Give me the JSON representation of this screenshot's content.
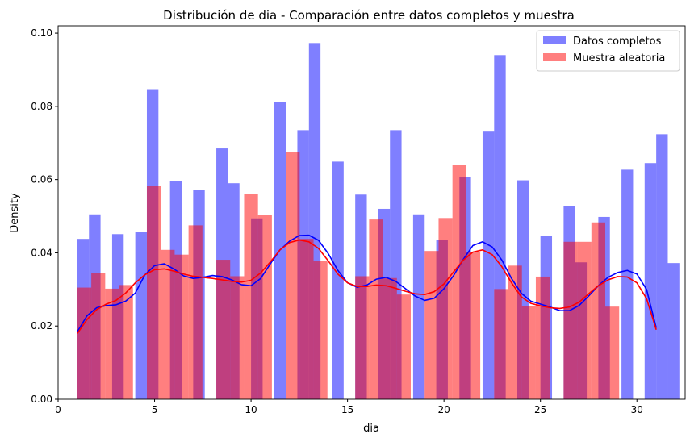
{
  "chart_data": {
    "type": "bar",
    "title": "Distribución de dia - Comparación entre datos completos y muestra",
    "xlabel": "dia",
    "ylabel": "Density",
    "xlim": [
      0.0,
      32.5
    ],
    "ylim": [
      0,
      0.102
    ],
    "xticks": [
      0,
      5,
      10,
      15,
      20,
      25,
      30
    ],
    "yticks": [
      0.0,
      0.02,
      0.04,
      0.06,
      0.08,
      0.1
    ],
    "ytick_labels": [
      "0.00",
      "0.02",
      "0.04",
      "0.06",
      "0.08",
      "0.10"
    ],
    "legend_position": "top-right",
    "series": [
      {
        "name": "Datos completos",
        "color": "#0000ff",
        "opacity": 0.5,
        "bin_width": 0.6,
        "bins": [
          [
            1.0,
            0.0438
          ],
          [
            1.6,
            0.0505
          ],
          [
            2.8,
            0.0451
          ],
          [
            4.0,
            0.0456
          ],
          [
            4.6,
            0.0847
          ],
          [
            5.8,
            0.0595
          ],
          [
            7.0,
            0.0571
          ],
          [
            8.2,
            0.0685
          ],
          [
            8.8,
            0.059
          ],
          [
            10.0,
            0.0494
          ],
          [
            11.2,
            0.0812
          ],
          [
            12.4,
            0.0735
          ],
          [
            13.0,
            0.0973
          ],
          [
            14.2,
            0.0649
          ],
          [
            15.4,
            0.0559
          ],
          [
            16.6,
            0.052
          ],
          [
            17.2,
            0.0735
          ],
          [
            18.4,
            0.0505
          ],
          [
            19.6,
            0.0436
          ],
          [
            20.8,
            0.0607
          ],
          [
            22.0,
            0.0731
          ],
          [
            22.6,
            0.094
          ],
          [
            23.8,
            0.0598
          ],
          [
            25.0,
            0.0447
          ],
          [
            26.2,
            0.0528
          ],
          [
            26.8,
            0.0374
          ],
          [
            28.0,
            0.0498
          ],
          [
            29.2,
            0.0627
          ],
          [
            30.4,
            0.0645
          ],
          [
            31.0,
            0.0724
          ],
          [
            31.6,
            0.0372
          ]
        ],
        "kde": [
          [
            1.0,
            0.0185
          ],
          [
            1.5,
            0.0228
          ],
          [
            2.0,
            0.025
          ],
          [
            2.5,
            0.0256
          ],
          [
            3.0,
            0.0258
          ],
          [
            3.5,
            0.0268
          ],
          [
            4.0,
            0.029
          ],
          [
            4.5,
            0.034
          ],
          [
            5.0,
            0.0365
          ],
          [
            5.5,
            0.037
          ],
          [
            6.0,
            0.0356
          ],
          [
            6.5,
            0.0337
          ],
          [
            7.0,
            0.033
          ],
          [
            7.5,
            0.0333
          ],
          [
            8.0,
            0.0338
          ],
          [
            8.5,
            0.0335
          ],
          [
            9.0,
            0.0326
          ],
          [
            9.5,
            0.0313
          ],
          [
            10.0,
            0.031
          ],
          [
            10.5,
            0.033
          ],
          [
            11.0,
            0.037
          ],
          [
            11.5,
            0.0408
          ],
          [
            12.0,
            0.0432
          ],
          [
            12.5,
            0.0447
          ],
          [
            13.0,
            0.0448
          ],
          [
            13.5,
            0.0434
          ],
          [
            14.0,
            0.0398
          ],
          [
            14.5,
            0.0352
          ],
          [
            15.0,
            0.0318
          ],
          [
            15.5,
            0.0306
          ],
          [
            16.0,
            0.0312
          ],
          [
            16.5,
            0.0328
          ],
          [
            17.0,
            0.0333
          ],
          [
            17.5,
            0.0322
          ],
          [
            18.0,
            0.0302
          ],
          [
            18.5,
            0.0282
          ],
          [
            19.0,
            0.027
          ],
          [
            19.5,
            0.0276
          ],
          [
            20.0,
            0.0302
          ],
          [
            20.5,
            0.0338
          ],
          [
            21.0,
            0.0382
          ],
          [
            21.5,
            0.042
          ],
          [
            22.0,
            0.043
          ],
          [
            22.5,
            0.0416
          ],
          [
            23.0,
            0.038
          ],
          [
            23.5,
            0.033
          ],
          [
            24.0,
            0.029
          ],
          [
            24.5,
            0.0268
          ],
          [
            25.0,
            0.026
          ],
          [
            25.5,
            0.0252
          ],
          [
            26.0,
            0.0242
          ],
          [
            26.5,
            0.0242
          ],
          [
            27.0,
            0.0256
          ],
          [
            27.5,
            0.0282
          ],
          [
            28.0,
            0.031
          ],
          [
            28.5,
            0.0333
          ],
          [
            29.0,
            0.0346
          ],
          [
            29.5,
            0.0352
          ],
          [
            30.0,
            0.0342
          ],
          [
            30.5,
            0.03
          ],
          [
            31.0,
            0.0195
          ]
        ]
      },
      {
        "name": "Muestra aleatoria",
        "color": "#ff0000",
        "opacity": 0.5,
        "bin_width": 0.72,
        "bins": [
          [
            1.0,
            0.0305
          ],
          [
            1.72,
            0.0345
          ],
          [
            2.44,
            0.0302
          ],
          [
            3.16,
            0.0312
          ],
          [
            4.6,
            0.0582
          ],
          [
            5.32,
            0.0408
          ],
          [
            6.04,
            0.0395
          ],
          [
            6.76,
            0.0475
          ],
          [
            8.2,
            0.0381
          ],
          [
            8.92,
            0.0336
          ],
          [
            9.64,
            0.056
          ],
          [
            10.36,
            0.0504
          ],
          [
            11.8,
            0.0676
          ],
          [
            12.52,
            0.0438
          ],
          [
            13.24,
            0.0377
          ],
          [
            15.4,
            0.0336
          ],
          [
            16.12,
            0.0491
          ],
          [
            16.84,
            0.0331
          ],
          [
            17.56,
            0.0286
          ],
          [
            19.0,
            0.0405
          ],
          [
            19.72,
            0.0495
          ],
          [
            20.44,
            0.064
          ],
          [
            21.16,
            0.0403
          ],
          [
            22.6,
            0.0301
          ],
          [
            23.32,
            0.0365
          ],
          [
            24.04,
            0.0254
          ],
          [
            24.76,
            0.0335
          ],
          [
            26.2,
            0.043
          ],
          [
            26.92,
            0.043
          ],
          [
            27.64,
            0.0483
          ],
          [
            28.36,
            0.0253
          ]
        ],
        "kde": [
          [
            1.0,
            0.018
          ],
          [
            1.5,
            0.0218
          ],
          [
            2.0,
            0.0245
          ],
          [
            2.5,
            0.026
          ],
          [
            3.0,
            0.027
          ],
          [
            3.5,
            0.029
          ],
          [
            4.0,
            0.0318
          ],
          [
            4.5,
            0.034
          ],
          [
            5.0,
            0.0354
          ],
          [
            5.5,
            0.0356
          ],
          [
            6.0,
            0.035
          ],
          [
            6.5,
            0.0342
          ],
          [
            7.0,
            0.0336
          ],
          [
            7.5,
            0.0333
          ],
          [
            8.0,
            0.033
          ],
          [
            8.5,
            0.0326
          ],
          [
            9.0,
            0.0322
          ],
          [
            9.5,
            0.032
          ],
          [
            10.0,
            0.0325
          ],
          [
            10.5,
            0.0345
          ],
          [
            11.0,
            0.0375
          ],
          [
            11.5,
            0.0408
          ],
          [
            12.0,
            0.0428
          ],
          [
            12.5,
            0.0435
          ],
          [
            13.0,
            0.043
          ],
          [
            13.5,
            0.0412
          ],
          [
            14.0,
            0.0378
          ],
          [
            14.5,
            0.0342
          ],
          [
            15.0,
            0.0318
          ],
          [
            15.5,
            0.0308
          ],
          [
            16.0,
            0.0308
          ],
          [
            16.5,
            0.0312
          ],
          [
            17.0,
            0.031
          ],
          [
            17.5,
            0.0303
          ],
          [
            18.0,
            0.0295
          ],
          [
            18.5,
            0.0288
          ],
          [
            19.0,
            0.0286
          ],
          [
            19.5,
            0.0294
          ],
          [
            20.0,
            0.0315
          ],
          [
            20.5,
            0.0348
          ],
          [
            21.0,
            0.038
          ],
          [
            21.5,
            0.0402
          ],
          [
            22.0,
            0.0408
          ],
          [
            22.5,
            0.0395
          ],
          [
            23.0,
            0.0362
          ],
          [
            23.5,
            0.0318
          ],
          [
            24.0,
            0.028
          ],
          [
            24.5,
            0.0262
          ],
          [
            25.0,
            0.0255
          ],
          [
            25.5,
            0.025
          ],
          [
            26.0,
            0.0248
          ],
          [
            26.5,
            0.0252
          ],
          [
            27.0,
            0.0265
          ],
          [
            27.5,
            0.0288
          ],
          [
            28.0,
            0.031
          ],
          [
            28.5,
            0.0326
          ],
          [
            29.0,
            0.0335
          ],
          [
            29.5,
            0.0334
          ],
          [
            30.0,
            0.0318
          ],
          [
            30.5,
            0.0275
          ],
          [
            31.0,
            0.019
          ]
        ]
      }
    ]
  }
}
